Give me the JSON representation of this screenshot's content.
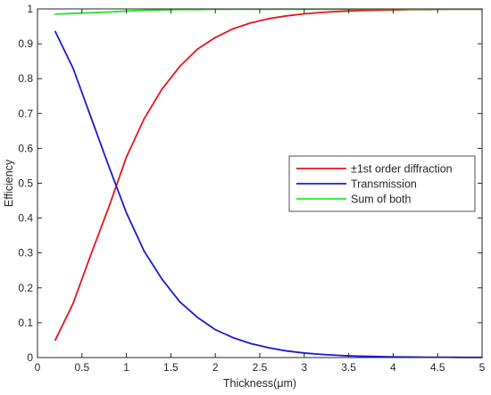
{
  "chart_data": {
    "type": "line",
    "title": "",
    "xlabel": "Thickness(μm)",
    "ylabel": "Efficiency",
    "xlim": [
      0,
      5
    ],
    "ylim": [
      0,
      1
    ],
    "xticks": [
      "0",
      "0.5",
      "1",
      "1.5",
      "2",
      "2.5",
      "3",
      "3.5",
      "4",
      "4.5",
      "5"
    ],
    "yticks": [
      "0",
      "0.1",
      "0.2",
      "0.3",
      "0.4",
      "0.5",
      "0.6",
      "0.7",
      "0.8",
      "0.9",
      "1"
    ],
    "grid": false,
    "legend_position": "right",
    "x": [
      0.2,
      0.4,
      0.6,
      0.8,
      1.0,
      1.2,
      1.4,
      1.6,
      1.8,
      2.0,
      2.2,
      2.4,
      2.6,
      2.8,
      3.0,
      3.2,
      3.4,
      3.6,
      3.8,
      4.0,
      4.2,
      4.4,
      4.6,
      4.8,
      5.0
    ],
    "series": [
      {
        "name": "±1st order diffraction",
        "color": "#e6141c",
        "values": [
          0.05,
          0.155,
          0.295,
          0.43,
          0.575,
          0.685,
          0.77,
          0.835,
          0.885,
          0.918,
          0.943,
          0.96,
          0.972,
          0.98,
          0.986,
          0.99,
          0.993,
          0.995,
          0.996,
          0.997,
          0.998,
          0.998,
          0.999,
          0.999,
          0.999
        ]
      },
      {
        "name": "Transmission",
        "color": "#1a1ad6",
        "values": [
          0.935,
          0.83,
          0.69,
          0.55,
          0.415,
          0.305,
          0.225,
          0.16,
          0.115,
          0.08,
          0.057,
          0.04,
          0.028,
          0.019,
          0.013,
          0.009,
          0.006,
          0.004,
          0.003,
          0.002,
          0.0015,
          0.001,
          0.001,
          0.0005,
          0.0005
        ]
      },
      {
        "name": "Sum of both",
        "color": "#22e622",
        "values": [
          0.985,
          0.987,
          0.989,
          0.991,
          0.994,
          0.996,
          0.997,
          0.998,
          0.998,
          0.999,
          0.999,
          0.999,
          0.999,
          0.999,
          0.999,
          0.999,
          0.999,
          0.999,
          0.999,
          0.999,
          0.999,
          0.999,
          0.999,
          0.999,
          0.999
        ]
      }
    ]
  }
}
